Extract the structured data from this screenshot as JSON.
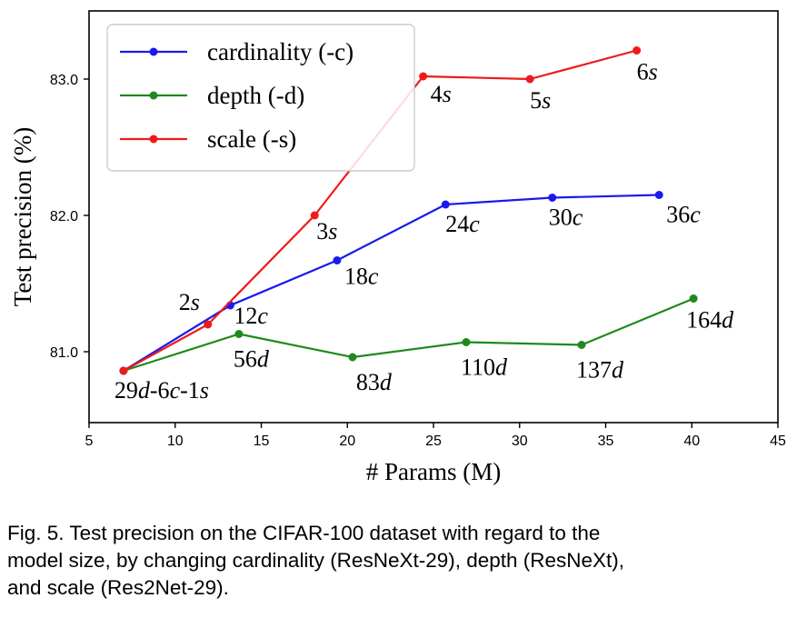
{
  "chart_data": {
    "type": "line",
    "xlabel": "# Params (M)",
    "ylabel": "Test precision (%)",
    "xlim": [
      5,
      45
    ],
    "ylim": [
      80.48,
      83.5
    ],
    "x_ticks": [
      {
        "value": 5,
        "label": "5"
      },
      {
        "value": 10,
        "label": "10"
      },
      {
        "value": 15,
        "label": "15"
      },
      {
        "value": 20,
        "label": "20"
      },
      {
        "value": 25,
        "label": "25"
      },
      {
        "value": 30,
        "label": "30"
      },
      {
        "value": 35,
        "label": "35"
      },
      {
        "value": 40,
        "label": "40"
      },
      {
        "value": 45,
        "label": "45"
      }
    ],
    "y_ticks": [
      {
        "value": 81.0,
        "label": "81.0"
      },
      {
        "value": 82.0,
        "label": "82.0"
      },
      {
        "value": 83.0,
        "label": "83.0"
      }
    ],
    "grid": false,
    "legend_position": "top-left",
    "series": [
      {
        "name": "cardinality (-c)",
        "color": "#1a1aee",
        "points": [
          {
            "x": 7.0,
            "y": 80.86,
            "label": [],
            "dx": 0,
            "dy": 0
          },
          {
            "x": 13.2,
            "y": 81.34,
            "label": [
              {
                "t": "12",
                "i": false
              },
              {
                "t": "c",
                "i": true
              }
            ],
            "dx": 4,
            "dy": 20
          },
          {
            "x": 19.4,
            "y": 81.67,
            "label": [
              {
                "t": "18",
                "i": false
              },
              {
                "t": "c",
                "i": true
              }
            ],
            "dx": 8,
            "dy": 26
          },
          {
            "x": 25.7,
            "y": 82.08,
            "label": [
              {
                "t": "24",
                "i": false
              },
              {
                "t": "c",
                "i": true
              }
            ],
            "dx": 0,
            "dy": 30
          },
          {
            "x": 31.9,
            "y": 82.13,
            "label": [
              {
                "t": "30",
                "i": false
              },
              {
                "t": "c",
                "i": true
              }
            ],
            "dx": -4,
            "dy": 30
          },
          {
            "x": 38.1,
            "y": 82.15,
            "label": [
              {
                "t": "36",
                "i": false
              },
              {
                "t": "c",
                "i": true
              }
            ],
            "dx": 8,
            "dy": 30
          }
        ]
      },
      {
        "name": "depth (-d)",
        "color": "#1e8a1e",
        "points": [
          {
            "x": 7.0,
            "y": 80.86,
            "label": [],
            "dx": 0,
            "dy": 0
          },
          {
            "x": 13.7,
            "y": 81.13,
            "label": [
              {
                "t": "56",
                "i": false
              },
              {
                "t": "d",
                "i": true
              }
            ],
            "dx": -6,
            "dy": 36
          },
          {
            "x": 20.3,
            "y": 80.96,
            "label": [
              {
                "t": "83",
                "i": false
              },
              {
                "t": "d",
                "i": true
              }
            ],
            "dx": 4,
            "dy": 36
          },
          {
            "x": 26.9,
            "y": 81.07,
            "label": [
              {
                "t": "110",
                "i": false
              },
              {
                "t": "d",
                "i": true
              }
            ],
            "dx": -6,
            "dy": 36
          },
          {
            "x": 33.6,
            "y": 81.05,
            "label": [
              {
                "t": "137",
                "i": false
              },
              {
                "t": "d",
                "i": true
              }
            ],
            "dx": -6,
            "dy": 36
          },
          {
            "x": 40.1,
            "y": 81.39,
            "label": [
              {
                "t": "164",
                "i": false
              },
              {
                "t": "d",
                "i": true
              }
            ],
            "dx": -8,
            "dy": 32
          }
        ]
      },
      {
        "name": "scale (-s)",
        "color": "#ee1a1a",
        "points": [
          {
            "x": 7.0,
            "y": 80.86,
            "label": [
              {
                "t": "29",
                "i": false
              },
              {
                "t": "d",
                "i": true
              },
              {
                "t": "-6",
                "i": false
              },
              {
                "t": "c",
                "i": true
              },
              {
                "t": "-1",
                "i": false
              },
              {
                "t": "s",
                "i": true
              }
            ],
            "dx": -10,
            "dy": 30
          },
          {
            "x": 11.9,
            "y": 81.2,
            "label": [
              {
                "t": "2",
                "i": false
              },
              {
                "t": "s",
                "i": true
              }
            ],
            "dx": -32,
            "dy": -16
          },
          {
            "x": 18.1,
            "y": 82.0,
            "label": [
              {
                "t": "3",
                "i": false
              },
              {
                "t": "s",
                "i": true
              }
            ],
            "dx": 2,
            "dy": 26
          },
          {
            "x": 24.4,
            "y": 83.02,
            "label": [
              {
                "t": "4",
                "i": false
              },
              {
                "t": "s",
                "i": true
              }
            ],
            "dx": 8,
            "dy": 28
          },
          {
            "x": 30.6,
            "y": 83.0,
            "label": [
              {
                "t": "5",
                "i": false
              },
              {
                "t": "s",
                "i": true
              }
            ],
            "dx": 0,
            "dy": 32
          },
          {
            "x": 36.8,
            "y": 83.21,
            "label": [
              {
                "t": "6",
                "i": false
              },
              {
                "t": "s",
                "i": true
              }
            ],
            "dx": 0,
            "dy": 32
          }
        ]
      }
    ]
  },
  "caption": {
    "lines": [
      "Fig. 5. Test precision on the CIFAR-100 dataset with regard to the",
      "model size, by changing cardinality (ResNeXt-29), depth (ResNeXt),",
      "and scale (Res2Net-29)."
    ]
  }
}
